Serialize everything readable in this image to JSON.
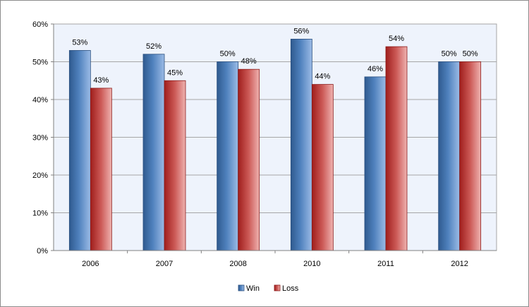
{
  "chart_data": {
    "type": "bar",
    "title": "",
    "xlabel": "",
    "ylabel": "",
    "categories": [
      "2006",
      "2007",
      "2008",
      "2010",
      "2011",
      "2012"
    ],
    "series": [
      {
        "name": "Win",
        "values": [
          53,
          52,
          50,
          56,
          46,
          50
        ],
        "labels": [
          "53%",
          "52%",
          "50%",
          "56%",
          "46%",
          "50%"
        ],
        "color": "#4f81bd"
      },
      {
        "name": "Loss",
        "values": [
          43,
          45,
          48,
          44,
          54,
          50
        ],
        "labels": [
          "43%",
          "45%",
          "48%",
          "44%",
          "54%",
          "50%"
        ],
        "color": "#c0504d"
      }
    ],
    "yticks": [
      "0%",
      "10%",
      "20%",
      "30%",
      "40%",
      "50%",
      "60%"
    ],
    "ylim": [
      0,
      60
    ],
    "grid": true,
    "legend_position": "bottom",
    "plot_background": "#eef3fc"
  }
}
